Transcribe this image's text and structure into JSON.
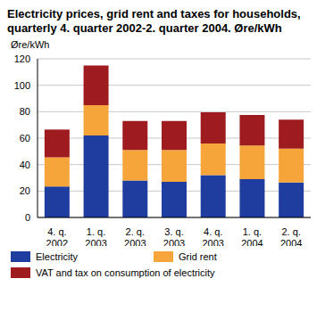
{
  "chart_data": {
    "type": "bar",
    "title": "Electricity prices, grid rent and taxes for households, quarterly 4. quarter 2002-2. quarter 2004. Øre/kWh",
    "y_label": "Øre/kWh",
    "categories": [
      "4. q.\n2002",
      "1. q.\n2003",
      "2. q.\n2003",
      "3. q.\n2003",
      "4. q.\n2003",
      "1. q.\n2004",
      "2. q.\n2004"
    ],
    "series": [
      {
        "name": "Electricity",
        "color": "#1f3d9e",
        "values": [
          23.5,
          62,
          28,
          27,
          32,
          29,
          26.5
        ]
      },
      {
        "name": "Grid rent",
        "color": "#f5a53a",
        "values": [
          22,
          23,
          23,
          24,
          24,
          25.5,
          25.5
        ]
      },
      {
        "name": "VAT and tax on consumption of electricity",
        "color": "#9e1b1f",
        "values": [
          21,
          30,
          22,
          22,
          23.5,
          23,
          22
        ]
      }
    ],
    "stacked": true,
    "ylim": [
      0,
      120
    ],
    "yticks": [
      0,
      20,
      40,
      60,
      80,
      100,
      120
    ],
    "grid": true
  }
}
